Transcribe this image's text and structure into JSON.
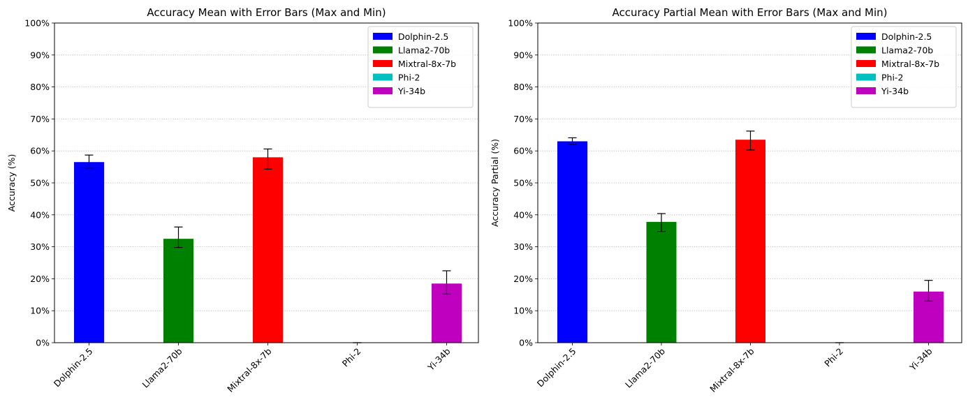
{
  "chart_data": [
    {
      "type": "bar",
      "title": "Accuracy Mean with Error Bars (Max and Min)",
      "xlabel": "",
      "ylabel": "Accuracy (%)",
      "categories": [
        "Dolphin-2.5",
        "Llama2-70b",
        "Mixtral-8x-7b",
        "Phi-2",
        "Yi-34b"
      ],
      "values": [
        56.5,
        32.5,
        58.0,
        0,
        18.5
      ],
      "error_min": [
        54.5,
        29.8,
        54.3,
        0,
        15.2
      ],
      "error_max": [
        58.7,
        36.2,
        60.6,
        0,
        22.5
      ],
      "colors": [
        "#0000ff",
        "#008000",
        "#ff0000",
        "#00bfbf",
        "#bf00bf"
      ],
      "ylim": [
        0,
        100
      ],
      "yticks": [
        "0%",
        "10%",
        "20%",
        "30%",
        "40%",
        "50%",
        "60%",
        "70%",
        "80%",
        "90%",
        "100%"
      ],
      "grid": "horizontal dotted",
      "legend": {
        "position": "top-right",
        "entries": [
          "Dolphin-2.5",
          "Llama2-70b",
          "Mixtral-8x-7b",
          "Phi-2",
          "Yi-34b"
        ]
      }
    },
    {
      "type": "bar",
      "title": "Accuracy Partial Mean with Error Bars (Max and Min)",
      "xlabel": "",
      "ylabel": "Accuracy Partial (%)",
      "categories": [
        "Dolphin-2.5",
        "Llama2-70b",
        "Mixtral-8x-7b",
        "Phi-2",
        "Yi-34b"
      ],
      "values": [
        63.0,
        37.8,
        63.5,
        0,
        16.0
      ],
      "error_min": [
        62.0,
        34.8,
        60.3,
        0,
        13.0
      ],
      "error_max": [
        64.1,
        40.4,
        66.2,
        0,
        19.5
      ],
      "colors": [
        "#0000ff",
        "#008000",
        "#ff0000",
        "#00bfbf",
        "#bf00bf"
      ],
      "ylim": [
        0,
        100
      ],
      "yticks": [
        "0%",
        "10%",
        "20%",
        "30%",
        "40%",
        "50%",
        "60%",
        "70%",
        "80%",
        "90%",
        "100%"
      ],
      "grid": "horizontal dotted",
      "legend": {
        "position": "top-right",
        "entries": [
          "Dolphin-2.5",
          "Llama2-70b",
          "Mixtral-8x-7b",
          "Phi-2",
          "Yi-34b"
        ]
      }
    }
  ]
}
